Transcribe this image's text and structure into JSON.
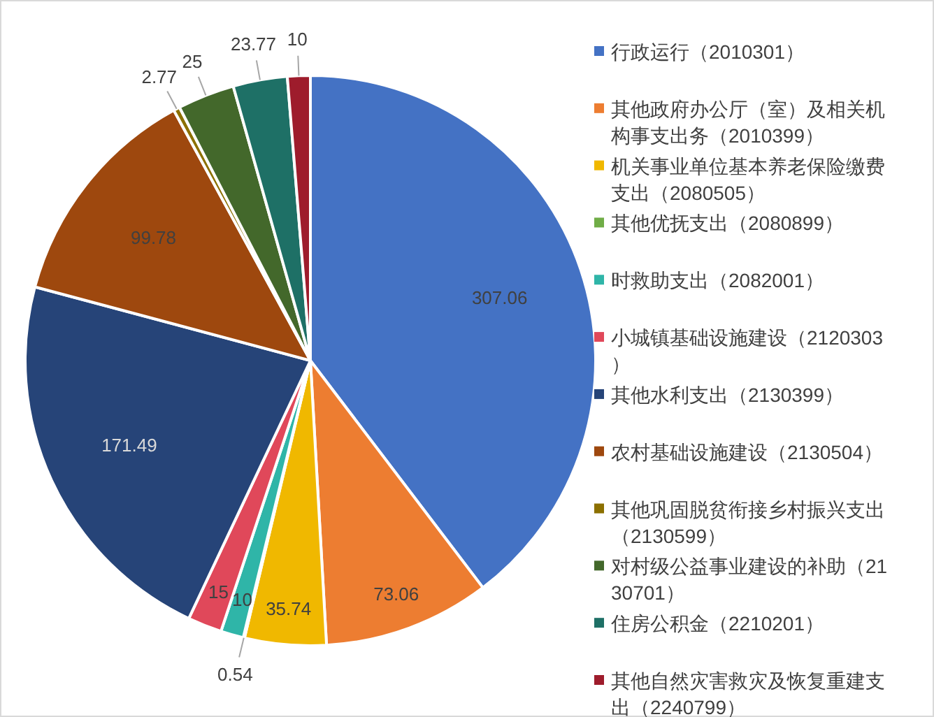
{
  "chart_data": {
    "type": "pie",
    "categories": [
      "行政运行（2010301）",
      "其他政府办公厅（室）及相关机构事支出务（2010399）",
      "机关事业单位基本养老保险缴费支出（2080505）",
      "其他优抚支出（2080899）",
      "时救助支出（2082001）",
      "小城镇基础设施建设（2120303）",
      "其他水利支出（2130399）",
      "农村基础设施建设（2130504）",
      "其他巩固脱贫衔接乡村振兴支出（2130599）",
      "对村级公益事业建设的补助（2130701）",
      "住房公积金（2210201）",
      "其他自然灾害救灾及恢复重建支出（2240799）"
    ],
    "values": [
      307.06,
      73.06,
      35.74,
      0.54,
      10,
      15,
      171.49,
      99.78,
      2.77,
      25,
      23.77,
      10
    ],
    "colors": [
      "#4472c4",
      "#ed7d31",
      "#f0b800",
      "#70ad47",
      "#2fb5a8",
      "#e0485a",
      "#264478",
      "#9e480e",
      "#8c7000",
      "#43682b",
      "#1e7066",
      "#9e1c2c"
    ],
    "data_labels": true,
    "legend": "right"
  }
}
